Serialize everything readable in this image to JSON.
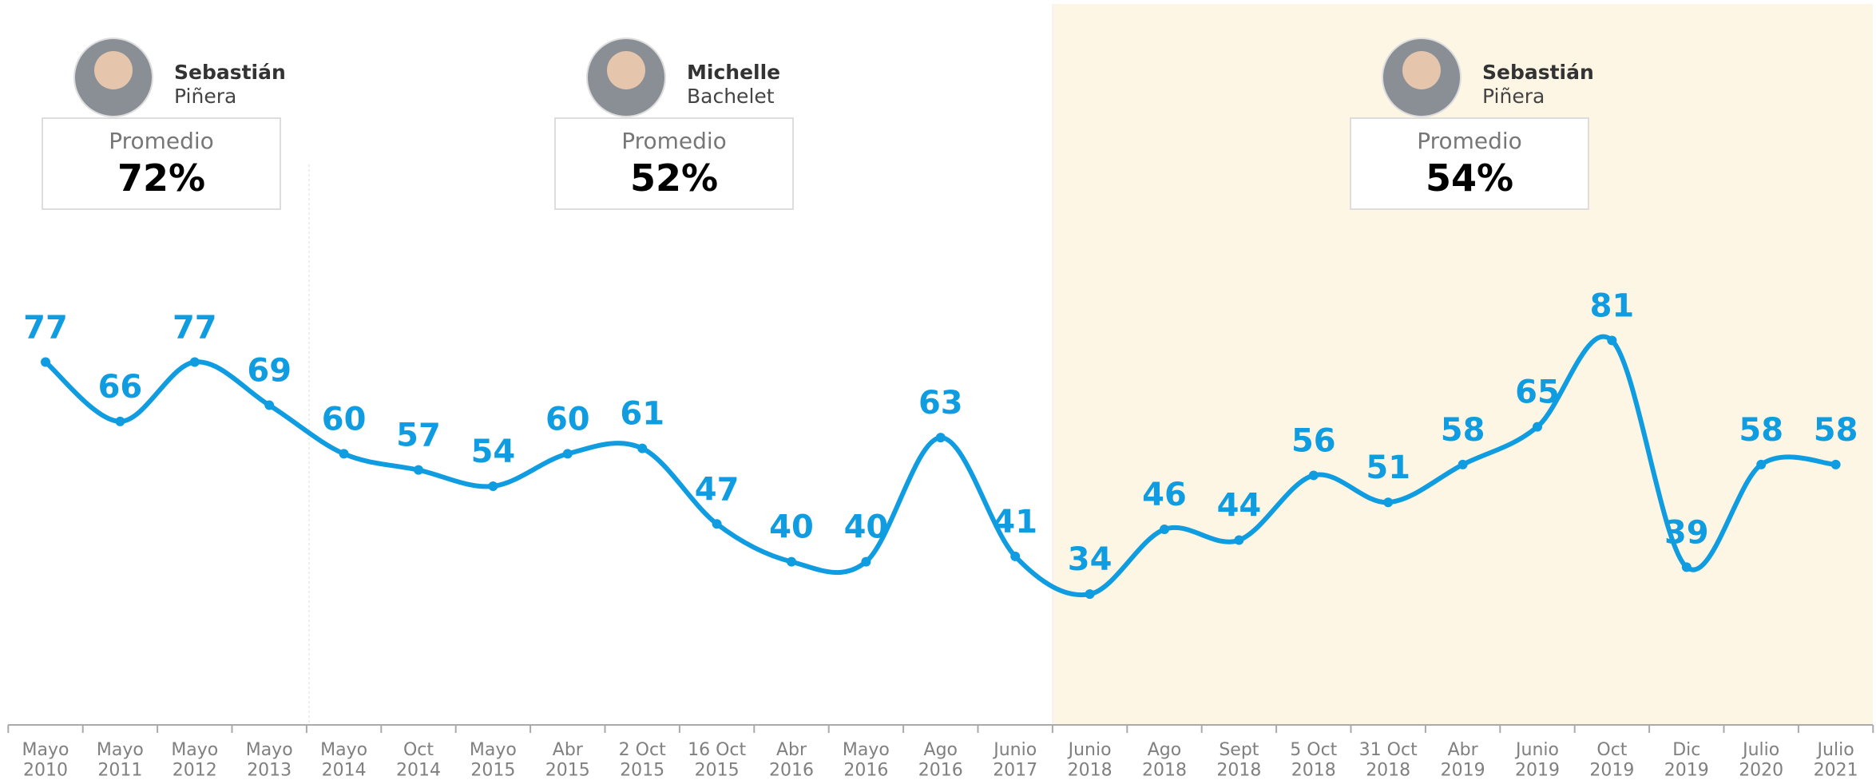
{
  "chart_data": {
    "type": "line",
    "categories": [
      "Mayo\n2010",
      "Mayo\n2011",
      "Mayo\n2012",
      "Mayo\n2013",
      "Mayo\n2014",
      "Oct\n2014",
      "Mayo\n2015",
      "Abr\n2015",
      "2 Oct\n2015",
      "16 Oct\n2015",
      "Abr\n2016",
      "Mayo\n2016",
      "Ago\n2016",
      "Junio\n2017",
      "Junio\n2018",
      "Ago\n2018",
      "Sept\n2018",
      "5 Oct\n2018",
      "31 Oct\n2018",
      "Abr\n2019",
      "Junio\n2019",
      "Oct\n2019",
      "Dic\n2019",
      "Julio\n2020",
      "Julio\n2021"
    ],
    "values": [
      77,
      66,
      77,
      69,
      60,
      57,
      54,
      60,
      61,
      47,
      40,
      40,
      63,
      41,
      34,
      46,
      44,
      56,
      51,
      58,
      65,
      81,
      39,
      58,
      58
    ],
    "color": "#0f9ce0"
  },
  "presidents": [
    {
      "first": "Sebastián",
      "last": "Piñera",
      "label": "Promedio",
      "average": "72%"
    },
    {
      "first": "Michelle",
      "last": "Bachelet",
      "label": "Promedio",
      "average": "52%"
    },
    {
      "first": "Sebastián",
      "last": "Piñera",
      "label": "Promedio",
      "average": "54%"
    }
  ]
}
